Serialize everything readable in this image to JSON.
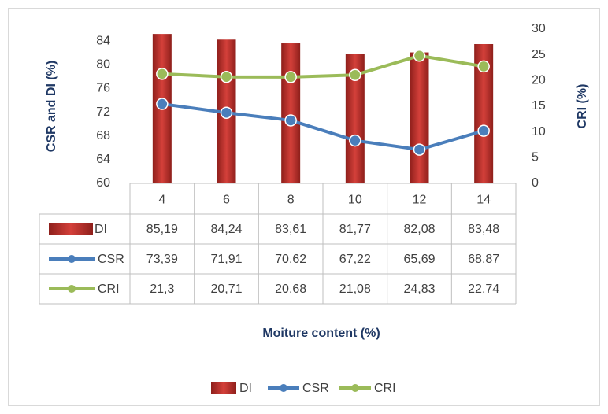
{
  "chart_data": {
    "type": "combo",
    "categories": [
      "4",
      "6",
      "8",
      "10",
      "12",
      "14"
    ],
    "series": [
      {
        "name": "DI",
        "type": "bar",
        "color": "#c0302b",
        "values": [
          85.19,
          84.24,
          83.61,
          81.77,
          82.08,
          83.48
        ],
        "value_labels": [
          "85,19",
          "84,24",
          "83,61",
          "81,77",
          "82,08",
          "83,48"
        ]
      },
      {
        "name": "CSR",
        "type": "line",
        "color": "#4a7ebb",
        "values": [
          73.39,
          71.91,
          70.62,
          67.22,
          65.69,
          68.87
        ],
        "value_labels": [
          "73,39",
          "71,91",
          "70,62",
          "67,22",
          "65,69",
          "68,87"
        ]
      },
      {
        "name": "CRI",
        "type": "line",
        "axis": "y2",
        "color": "#9bbb59",
        "values": [
          21.3,
          20.71,
          20.68,
          21.08,
          24.83,
          22.74
        ],
        "value_labels": [
          "21,3",
          "20,71",
          "20,68",
          "21,08",
          "24,83",
          "22,74"
        ]
      }
    ],
    "ylabel": "CSR and DI (%)",
    "y2label": "CRI (%)",
    "xlabel": "Moiture content (%)",
    "ylim": [
      60,
      86
    ],
    "yticks": [
      60,
      64,
      68,
      72,
      76,
      80,
      84
    ],
    "y2lim": [
      0,
      30
    ],
    "y2ticks": [
      0,
      5,
      10,
      15,
      20,
      25,
      30
    ],
    "legend": "bottom"
  }
}
